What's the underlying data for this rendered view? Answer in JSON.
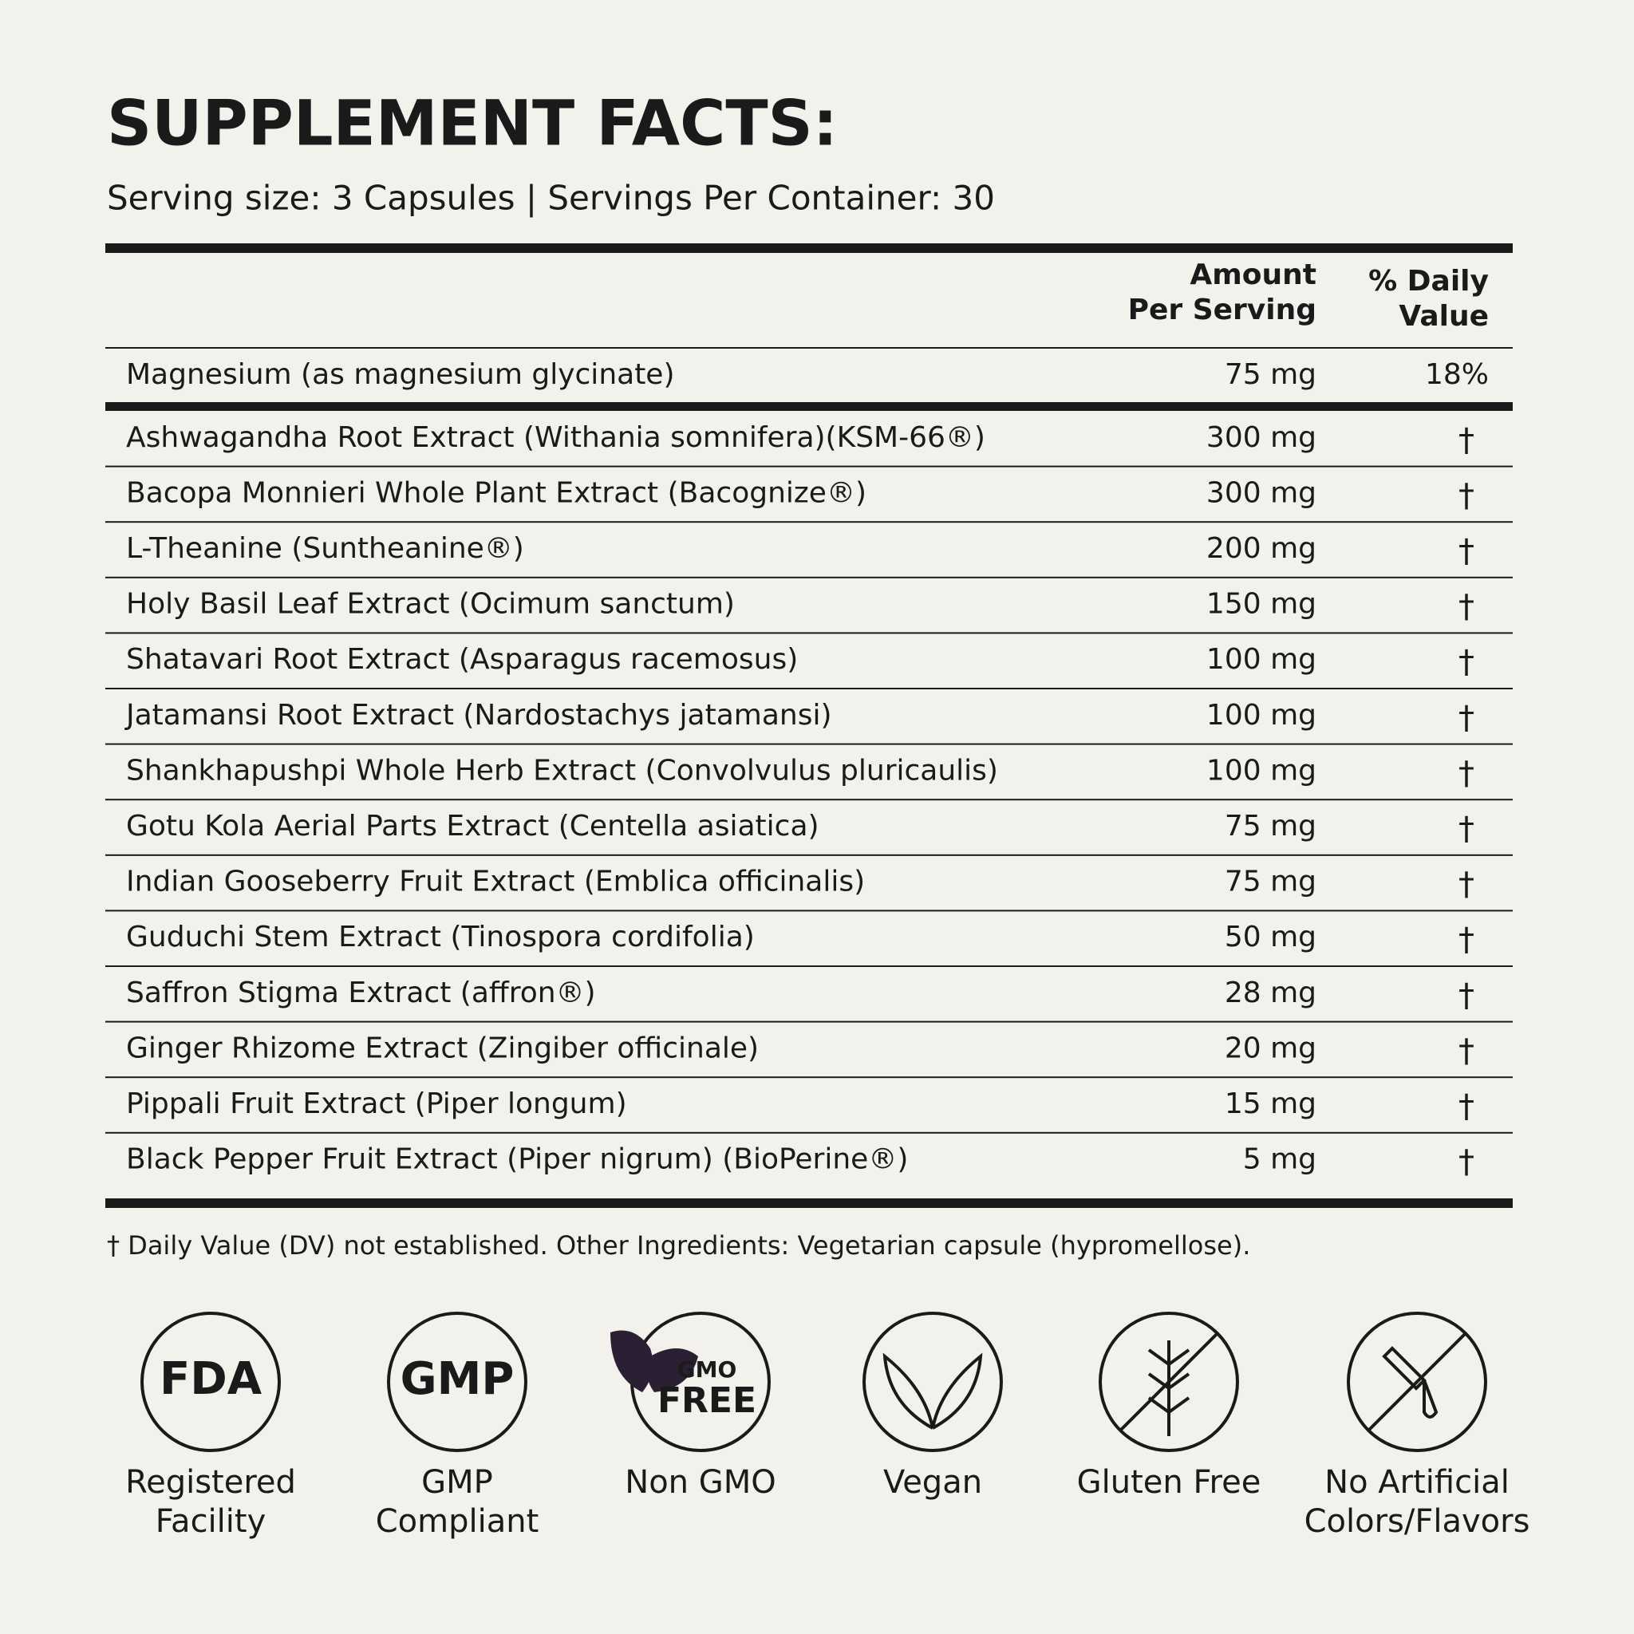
{
  "header": {
    "title": "SUPPLEMENT FACTS:",
    "serving": "Serving size: 3 Capsules | Servings Per Container: 30"
  },
  "table": {
    "columns": [
      [
        "Amount",
        "Per Serving"
      ],
      [
        "% Daily",
        "Value"
      ]
    ],
    "featured_row": {
      "name": "Magnesium (as magnesium glycinate)",
      "amount": "75 mg",
      "dv": "18%"
    },
    "rows": [
      {
        "name": "Ashwagandha Root Extract (Withania somnifera)(KSM-66®)",
        "amount": "300 mg",
        "dv": "†"
      },
      {
        "name": "Bacopa Monnieri Whole Plant Extract (Bacognize®)",
        "amount": "300 mg",
        "dv": "†"
      },
      {
        "name": "L-Theanine (Suntheanine®)",
        "amount": "200 mg",
        "dv": "†"
      },
      {
        "name": "Holy Basil Leaf Extract (Ocimum sanctum)",
        "amount": "150 mg",
        "dv": "†"
      },
      {
        "name": "Shatavari Root Extract (Asparagus racemosus)",
        "amount": "100 mg",
        "dv": "†"
      },
      {
        "name": "Jatamansi Root Extract (Nardostachys jatamansi)",
        "amount": "100 mg",
        "dv": "†"
      },
      {
        "name": "Shankhapushpi Whole Herb Extract (Convolvulus pluricaulis)",
        "amount": "100 mg",
        "dv": "†"
      },
      {
        "name": "Gotu Kola Aerial Parts Extract (Centella asiatica)",
        "amount": "75 mg",
        "dv": "†"
      },
      {
        "name": "Indian Gooseberry Fruit Extract (Emblica officinalis)",
        "amount": "75 mg",
        "dv": "†"
      },
      {
        "name": "Guduchi Stem Extract (Tinospora cordifolia)",
        "amount": "50 mg",
        "dv": "†"
      },
      {
        "name": "Saffron Stigma Extract (affron®)",
        "amount": "28 mg",
        "dv": "†"
      },
      {
        "name": "Ginger Rhizome Extract (Zingiber officinale)",
        "amount": "20 mg",
        "dv": "†"
      },
      {
        "name": "Pippali Fruit Extract (Piper longum)",
        "amount": "15 mg",
        "dv": "†"
      },
      {
        "name": "Black Pepper Fruit Extract (Piper nigrum) (BioPerine®)",
        "amount": "5 mg",
        "dv": "†"
      }
    ]
  },
  "footnote": "† Daily Value (DV) not established. Other Ingredients: Vegetarian capsule (hypromellose).",
  "badges": [
    {
      "icon_text": [
        "FDA"
      ],
      "label": [
        "Registered",
        "Facility"
      ]
    },
    {
      "icon_text": [
        "GMP"
      ],
      "label": [
        "GMP",
        "Compliant"
      ]
    },
    {
      "icon_text": [
        "GMO",
        "FREE"
      ],
      "label": [
        "Non GMO"
      ]
    },
    {
      "label": [
        "Vegan"
      ]
    },
    {
      "label": [
        "Gluten Free"
      ]
    },
    {
      "label": [
        "No Artificial",
        "Colors/Flavors"
      ]
    }
  ]
}
